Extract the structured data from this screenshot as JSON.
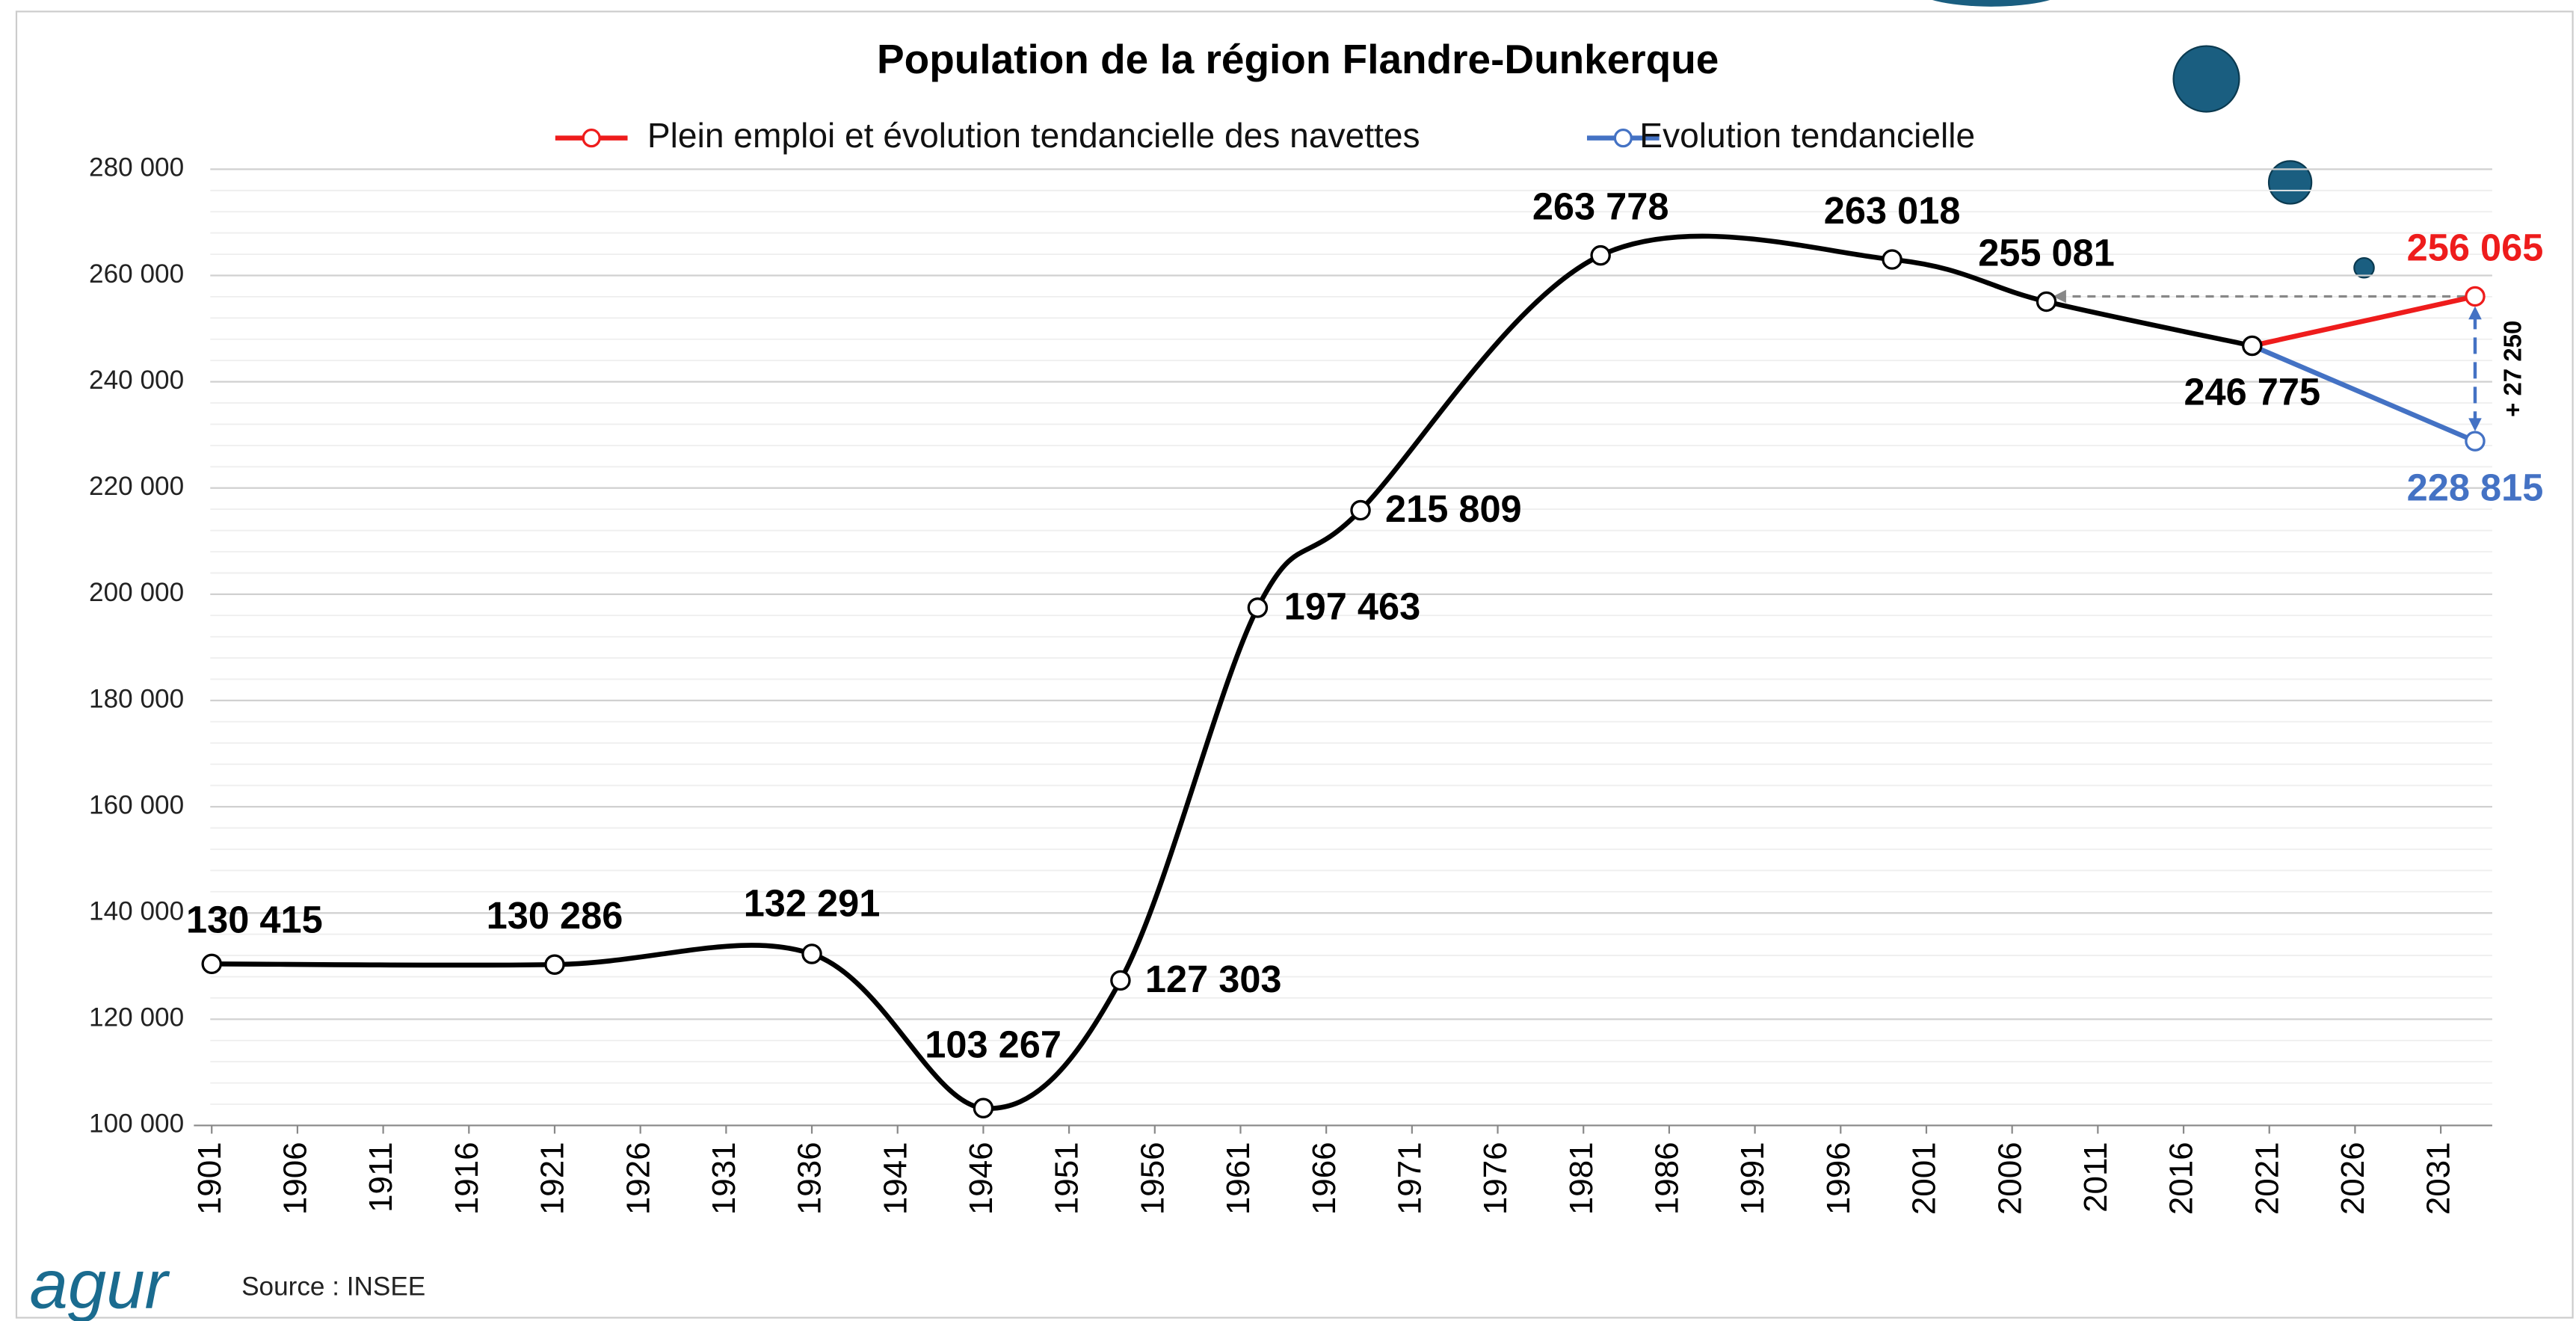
{
  "chart_data": {
    "type": "line",
    "title": "Population de la région Flandre-Dunkerque",
    "x_series": [
      1901,
      1921,
      1936,
      1946,
      1954,
      1962,
      1968,
      1982,
      1999,
      2008,
      2020
    ],
    "series": [
      {
        "color": "#000000",
        "x": [
          1901,
          1921,
          1936,
          1946,
          1954,
          1962,
          1968,
          1982,
          1999,
          2008,
          2020
        ],
        "values": [
          130415,
          130286,
          132291,
          103267,
          127303,
          197463,
          215809,
          263778,
          263018,
          255081,
          246775
        ],
        "value_labels": [
          "130 415",
          "130 286",
          "132 291",
          "103 267",
          "127 303",
          "197 463",
          "215 809",
          "263 778",
          "263 018",
          "255 081",
          "246 775"
        ]
      },
      {
        "name": "Plein emploi et évolution tendancielle des navettes",
        "color": "#ee1c1c",
        "x": [
          2020,
          2033
        ],
        "values": [
          246775,
          256065
        ],
        "value_labels": [
          null,
          "256 065"
        ]
      },
      {
        "name": "Evolution tendancielle",
        "color": "#4472c4",
        "x": [
          2020,
          2033
        ],
        "values": [
          246775,
          228815
        ],
        "value_labels": [
          null,
          "228 815"
        ]
      }
    ],
    "annotations": [
      "+ 27 250"
    ],
    "source": "Source : INSEE",
    "logo": "agur",
    "xlim": [
      1899,
      2034
    ],
    "xticks": [
      1901,
      1906,
      1911,
      1916,
      1921,
      1926,
      1931,
      1936,
      1941,
      1946,
      1951,
      1956,
      1961,
      1966,
      1971,
      1976,
      1981,
      1986,
      1991,
      1996,
      2001,
      2006,
      2011,
      2016,
      2021,
      2026,
      2031
    ],
    "ylim": [
      100000,
      280000
    ],
    "yticks": [
      {
        "value": 100000,
        "label": "100 000"
      },
      {
        "value": 120000,
        "label": "120 000"
      },
      {
        "value": 140000,
        "label": "140 000"
      },
      {
        "value": 160000,
        "label": "160 000"
      },
      {
        "value": 180000,
        "label": "180 000"
      },
      {
        "value": 200000,
        "label": "200 000"
      },
      {
        "value": 220000,
        "label": "220 000"
      },
      {
        "value": 240000,
        "label": "240 000"
      },
      {
        "value": 260000,
        "label": "260 000"
      },
      {
        "value": 280000,
        "label": "280 000"
      }
    ],
    "grid": true
  }
}
